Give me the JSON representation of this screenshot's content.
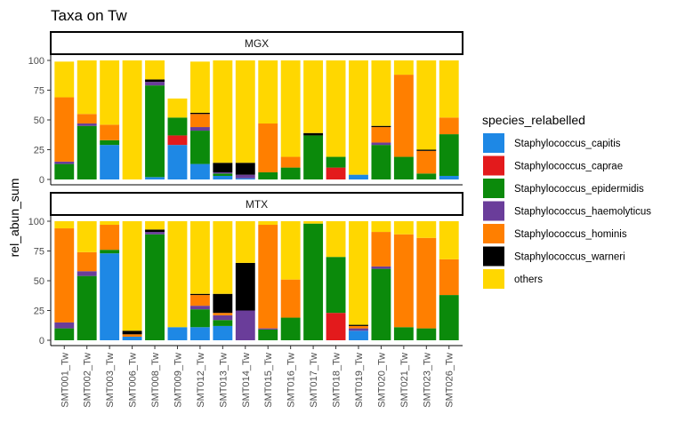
{
  "chart_data": {
    "type": "bar",
    "title": "Taxa on Tw",
    "ylabel": "rel_abun_sum",
    "xlabel": "",
    "ylim": [
      0,
      100
    ],
    "yticks": [
      0,
      25,
      50,
      75,
      100
    ],
    "grid": false,
    "legend_title": "species_relabelled",
    "legend_position": "right",
    "categories": [
      "SMT001_Tw",
      "SMT002_Tw",
      "SMT003_Tw",
      "SMT006_Tw",
      "SMT008_Tw",
      "SMT009_Tw",
      "SMT012_Tw",
      "SMT013_Tw",
      "SMT014_Tw",
      "SMT015_Tw",
      "SMT016_Tw",
      "SMT017_Tw",
      "SMT018_Tw",
      "SMT019_Tw",
      "SMT020_Tw",
      "SMT021_Tw",
      "SMT023_Tw",
      "SMT026_Tw"
    ],
    "species": [
      {
        "name": "Staphylococcus_capitis",
        "color": "#1E88E5"
      },
      {
        "name": "Staphylococcus_caprae",
        "color": "#E31A1C"
      },
      {
        "name": "Staphylococcus_epidermidis",
        "color": "#0B8A0B"
      },
      {
        "name": "Staphylococcus_haemolyticus",
        "color": "#6A3D9A"
      },
      {
        "name": "Staphylococcus_hominis",
        "color": "#FF7F00"
      },
      {
        "name": "Staphylococcus_warneri",
        "color": "#000000"
      },
      {
        "name": "others",
        "color": "#FFD700"
      }
    ],
    "panels": [
      {
        "name": "MGX",
        "values": [
          [
            0,
            0,
            13,
            2,
            54,
            0,
            30
          ],
          [
            0,
            0,
            45,
            2,
            8,
            0,
            45
          ],
          [
            29,
            0,
            4,
            0,
            13,
            0,
            54
          ],
          [
            0,
            0,
            0,
            0,
            0,
            0,
            100
          ],
          [
            2,
            0,
            77,
            3,
            0,
            2,
            16
          ],
          [
            29,
            8,
            15,
            0,
            0,
            0,
            16
          ],
          [
            13,
            0,
            28,
            3,
            11,
            1,
            43
          ],
          [
            3,
            0,
            2,
            1,
            0,
            8,
            86
          ],
          [
            1,
            0,
            0,
            3,
            0,
            10,
            86
          ],
          [
            0,
            0,
            6,
            0,
            41,
            0,
            53
          ],
          [
            0,
            0,
            10,
            0,
            9,
            0,
            81
          ],
          [
            0,
            0,
            37,
            0,
            0,
            2,
            61
          ],
          [
            0,
            10,
            9,
            0,
            0,
            0,
            81
          ],
          [
            4,
            0,
            0,
            0,
            0,
            0,
            96
          ],
          [
            0,
            0,
            29,
            2,
            13,
            1,
            55
          ],
          [
            0,
            0,
            19,
            0,
            69,
            0,
            12
          ],
          [
            0,
            0,
            5,
            0,
            19,
            1,
            75
          ],
          [
            3,
            0,
            35,
            0,
            14,
            0,
            48
          ]
        ]
      },
      {
        "name": "MTX",
        "values": [
          [
            0,
            0,
            10,
            5,
            79,
            0,
            6
          ],
          [
            0,
            0,
            54,
            4,
            16,
            0,
            26
          ],
          [
            73,
            0,
            3,
            0,
            21,
            0,
            3
          ],
          [
            3,
            0,
            0,
            0,
            2,
            3,
            92
          ],
          [
            0,
            0,
            89,
            2,
            0,
            2,
            7
          ],
          [
            11,
            0,
            0,
            0,
            0,
            0,
            89
          ],
          [
            11,
            0,
            15,
            3,
            9,
            1,
            61
          ],
          [
            12,
            0,
            5,
            4,
            2,
            16,
            61
          ],
          [
            0,
            0,
            0,
            25,
            0,
            40,
            35
          ],
          [
            0,
            0,
            9,
            1,
            87,
            0,
            3
          ],
          [
            0,
            0,
            19,
            0,
            32,
            0,
            49
          ],
          [
            0,
            0,
            98,
            0,
            0,
            0,
            2
          ],
          [
            0,
            23,
            47,
            0,
            0,
            0,
            30
          ],
          [
            8,
            0,
            0,
            2,
            2,
            1,
            87
          ],
          [
            0,
            0,
            60,
            2,
            29,
            0,
            9
          ],
          [
            0,
            0,
            11,
            0,
            78,
            0,
            11
          ],
          [
            0,
            0,
            10,
            0,
            76,
            0,
            14
          ],
          [
            0,
            0,
            38,
            0,
            30,
            0,
            32
          ]
        ]
      }
    ]
  }
}
